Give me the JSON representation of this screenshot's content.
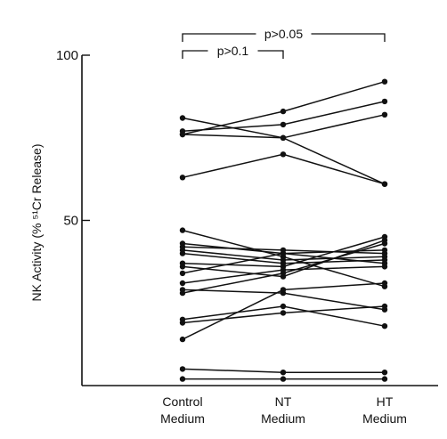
{
  "chart_data": {
    "type": "line",
    "title": "",
    "xlabel": "",
    "ylabel": "NK Activity (% ⁵¹Cr Release)",
    "ylim": [
      0,
      100
    ],
    "yticks": [
      {
        "value": 50,
        "label": "50"
      },
      {
        "value": 100,
        "label": "100"
      }
    ],
    "categories": [
      {
        "line1": "Control",
        "line2": "Medium"
      },
      {
        "line1": "NT",
        "line2": "Medium"
      },
      {
        "line1": "HT",
        "line2": "Medium"
      }
    ],
    "grid": false,
    "legend": "none",
    "annotations": [
      {
        "text": "p>0.1",
        "from": 0,
        "to": 1,
        "level": 1
      },
      {
        "text": "p>0.05",
        "from": 0,
        "to": 2,
        "level": 2
      }
    ],
    "series": [
      {
        "values": [
          81,
          75,
          61
        ]
      },
      {
        "values": [
          76,
          83,
          92
        ]
      },
      {
        "values": [
          77,
          79,
          86
        ]
      },
      {
        "values": [
          76,
          75,
          82
        ]
      },
      {
        "values": [
          63,
          70,
          61
        ]
      },
      {
        "values": [
          47,
          39,
          30
        ]
      },
      {
        "values": [
          43,
          40,
          41
        ]
      },
      {
        "values": [
          42,
          41,
          40
        ]
      },
      {
        "values": [
          41,
          38,
          39
        ]
      },
      {
        "values": [
          40,
          37,
          38
        ]
      },
      {
        "values": [
          37,
          36,
          45
        ]
      },
      {
        "values": [
          36,
          33,
          44
        ]
      },
      {
        "values": [
          34,
          40,
          37
        ]
      },
      {
        "values": [
          31,
          35,
          36
        ]
      },
      {
        "values": [
          29,
          28,
          23
        ]
      },
      {
        "values": [
          28,
          34,
          43
        ]
      },
      {
        "values": [
          20,
          24,
          18
        ]
      },
      {
        "values": [
          19,
          22,
          24
        ]
      },
      {
        "values": [
          14,
          29,
          31
        ]
      },
      {
        "values": [
          5,
          4,
          4
        ]
      },
      {
        "values": [
          2,
          2,
          2
        ]
      }
    ]
  }
}
